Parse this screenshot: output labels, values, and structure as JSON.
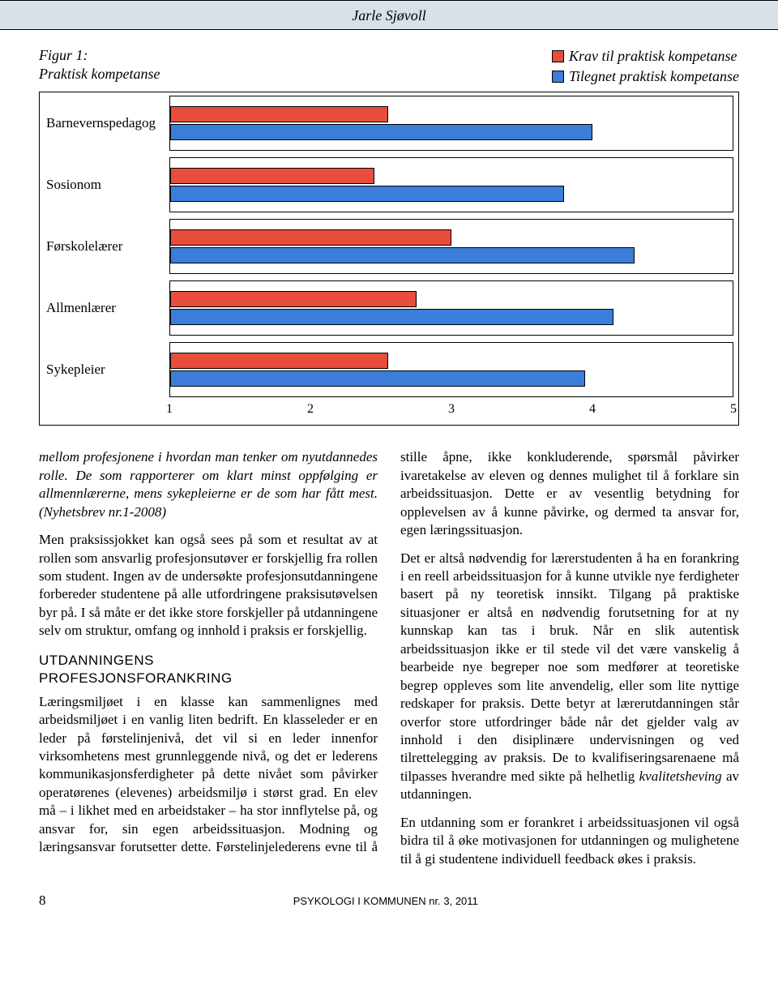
{
  "header": {
    "author": "Jarle Sjøvoll"
  },
  "figure": {
    "title_line1": "Figur 1:",
    "title_line2": "Praktisk kompetanse",
    "legend": [
      {
        "swatch": "#e84c3d",
        "label": "Krav til praktisk kompetanse"
      },
      {
        "swatch": "#3b7dd8",
        "label": "Tilegnet praktisk kompetanse"
      }
    ],
    "chart": {
      "type": "horizontal-grouped-bar",
      "x_min": 1,
      "x_max": 5,
      "ticks": [
        1,
        2,
        3,
        4,
        5
      ],
      "bar_border": "#000000",
      "colors": {
        "krav": "#e84c3d",
        "tilegnet": "#3b7dd8"
      },
      "categories": [
        {
          "label": "Barnevernspedagog",
          "krav": 2.55,
          "tilegnet": 4.0
        },
        {
          "label": "Sosionom",
          "krav": 2.45,
          "tilegnet": 3.8
        },
        {
          "label": "Førskolelærer",
          "krav": 3.0,
          "tilegnet": 4.3
        },
        {
          "label": "Allmenlærer",
          "krav": 2.75,
          "tilegnet": 4.15
        },
        {
          "label": "Sykepleier",
          "krav": 2.55,
          "tilegnet": 3.95
        }
      ]
    }
  },
  "body": {
    "quote_p1": "mellom profesjonene i hvordan man tenker om nyutdannedes rolle. De som rapporterer om klart minst oppfølging er allmennlærerne, mens sykepleierne er de som har fått mest. (Nyhetsbrev nr.1-2008)",
    "p2": "Men praksissjokket kan også sees på som et resultat av at rollen som ansvarlig profesjonsutøver er forskjellig fra rollen som student. Ingen av de undersøkte profesjonsutdanningene forbereder studentene på alle utfordringene praksisutøvelsen byr på. I så måte er det ikke store forskjeller på utdanningene selv om struktur, omfang og innhold i praksis er forskjellig.",
    "section_l1": "UTDANNINGENS",
    "section_l2": "PROFESJONSFORANKRING",
    "p3": "Læringsmiljøet i en klasse kan sammenlignes med arbeidsmiljøet i en vanlig liten bedrift. En klasseleder er en leder på førstelinjenivå, det vil si en leder innenfor virksomhetens mest grunnleggende nivå, og det er lederens kommunikasjonsferdigheter på dette nivået som påvirker operatørenes (elevenes) arbeidsmiljø i størst grad. En elev må – i likhet med en arbeidstaker – ha stor innflytelse på, og ansvar for, sin egen arbeidssituasjon. Modning og læringsansvar forutsetter dette. Førstelinjelederens evne til å stille åpne, ikke konkluderende, spørsmål påvirker ivaretakelse av eleven og dennes mulighet til å forklare sin arbeidssituasjon. Dette er av vesentlig betydning for opplevelsen av å kunne påvirke, og dermed ta ansvar for, egen læringssituasjon.",
    "p4_pre": "Det er altså nødvendig for lærerstudenten å ha en forankring i en reell arbeidssituasjon for å kunne utvikle nye ferdigheter basert på ny teoretisk innsikt. Tilgang på praktiske situasjoner er altså en nødvendig forutsetning for at ny kunnskap kan tas i bruk. Når en slik autentisk arbeidssituasjon ikke er til stede vil det være vanskelig å bearbeide nye begreper noe som medfører at teoretiske begrep oppleves som lite anvendelig, eller som lite nyttige redskaper for praksis. Dette betyr at lærerutdanningen står overfor store utfordringer både når det gjelder valg av innhold i den disiplinære undervisningen og ved tilrettelegging av praksis. De to kvalifiseringsarenaene må tilpasses hverandre med sikte på helhetlig ",
    "p4_em": "kvalitetsheving",
    "p4_post": " av utdanningen.",
    "p5": "En utdanning som er forankret i arbeidssituasjonen vil også bidra til å øke motivasjonen for utdanningen og mulighetene til å gi studentene individuell feedback økes i praksis."
  },
  "footer": {
    "page": "8",
    "pub": "PSYKOLOGI I KOMMUNEN nr. 3, 2011"
  }
}
